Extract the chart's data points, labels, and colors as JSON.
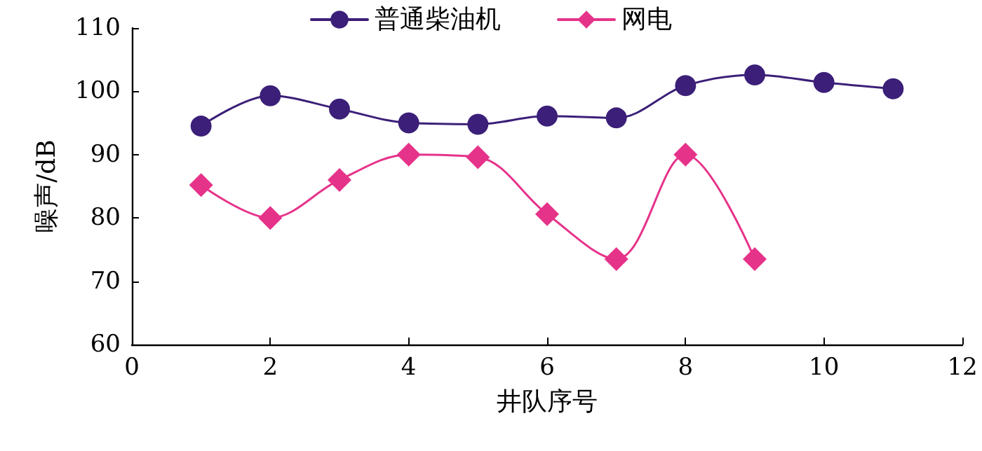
{
  "chart_data": {
    "type": "line",
    "xlabel": "井队序号",
    "ylabel": "噪声/dB",
    "x": [
      1,
      2,
      3,
      4,
      5,
      6,
      7,
      8,
      9,
      10,
      11
    ],
    "series": [
      {
        "name": "普通柴油机",
        "color": "#3b1f78",
        "marker": "circle",
        "values": [
          94.5,
          99.3,
          97.2,
          95,
          94.8,
          96.1,
          95.8,
          100.9,
          102.6,
          101.4,
          100.4
        ]
      },
      {
        "name": "网电",
        "color": "#e6338a",
        "marker": "diamond",
        "values": [
          85.2,
          80,
          86,
          90,
          89.6,
          80.6,
          73.5,
          90,
          73.5,
          null,
          null
        ]
      }
    ],
    "xlim": [
      0,
      12
    ],
    "xticks": [
      0,
      2,
      4,
      6,
      8,
      10,
      12
    ],
    "ylim": [
      60,
      110
    ],
    "yticks": [
      60,
      70,
      80,
      90,
      100,
      110
    ],
    "grid": false,
    "legend": "top"
  }
}
